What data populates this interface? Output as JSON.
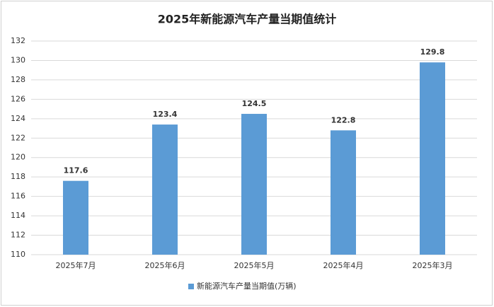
{
  "chart_data": {
    "type": "bar",
    "title": "2025年新能源汽车产量当期值统计",
    "categories": [
      "2025年7月",
      "2025年6月",
      "2025年5月",
      "2025年4月",
      "2025年3月"
    ],
    "series": [
      {
        "name": "新能源汽车产量当期值(万辆)",
        "color": "#5b9bd5",
        "values": [
          117.6,
          123.4,
          124.5,
          122.8,
          129.8
        ]
      }
    ],
    "ylim": [
      110,
      132
    ],
    "yticks": [
      110,
      112,
      114,
      116,
      118,
      120,
      122,
      124,
      126,
      128,
      130,
      132
    ],
    "grid": true,
    "legend": "bottom"
  }
}
